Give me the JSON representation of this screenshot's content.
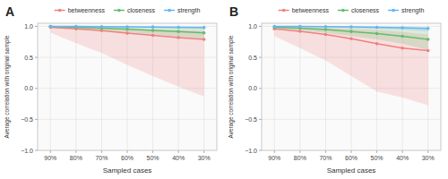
{
  "chart_data": [
    {
      "type": "line",
      "title": "A",
      "xlabel": "Sampled cases",
      "ylabel": "Average correlation with original sample",
      "categories": [
        "90%",
        "80%",
        "70%",
        "60%",
        "50%",
        "40%",
        "30%"
      ],
      "ylim": [
        -1.0,
        1.05
      ],
      "yticks": [
        {
          "value": -1.0,
          "label": "−1.0"
        },
        {
          "value": -0.5,
          "label": "−0.5"
        },
        {
          "value": 0.0,
          "label": "0.0"
        },
        {
          "value": 0.5,
          "label": "0.5"
        },
        {
          "value": 1.0,
          "label": "1.0"
        }
      ],
      "grid": true,
      "legend": "top",
      "series": [
        {
          "name": "betweenness",
          "color": "#F08080",
          "values": [
            0.985,
            0.96,
            0.93,
            0.89,
            0.855,
            0.82,
            0.79
          ],
          "lower": [
            0.9,
            0.73,
            0.57,
            0.38,
            0.2,
            0.03,
            -0.13
          ],
          "upper": [
            1.0,
            0.985,
            0.97,
            0.96,
            0.95,
            0.94,
            0.93
          ]
        },
        {
          "name": "closeness",
          "color": "#66BB6A",
          "values": [
            1.0,
            0.985,
            0.97,
            0.955,
            0.935,
            0.915,
            0.895
          ],
          "lower": [
            0.99,
            0.965,
            0.935,
            0.905,
            0.87,
            0.835,
            0.8
          ],
          "upper": [
            1.0,
            0.999,
            0.998,
            0.995,
            0.992,
            0.988,
            0.983
          ]
        },
        {
          "name": "strength",
          "color": "#64B5F6",
          "values": [
            1.0,
            0.998,
            0.996,
            0.993,
            0.99,
            0.986,
            0.98
          ],
          "lower": [
            0.998,
            0.993,
            0.988,
            0.982,
            0.975,
            0.966,
            0.956
          ],
          "upper": [
            1.0,
            1.0,
            1.0,
            0.999,
            0.998,
            0.997,
            0.996
          ]
        }
      ]
    },
    {
      "type": "line",
      "title": "B",
      "xlabel": "Sampled cases",
      "ylabel": "Average correlation with original sample",
      "categories": [
        "90%",
        "80%",
        "70%",
        "60%",
        "50%",
        "40%",
        "30%"
      ],
      "ylim": [
        -1.0,
        1.05
      ],
      "yticks": [
        {
          "value": -1.0,
          "label": "−1.0"
        },
        {
          "value": -0.5,
          "label": "−0.5"
        },
        {
          "value": 0.0,
          "label": "0.0"
        },
        {
          "value": 0.5,
          "label": "0.5"
        },
        {
          "value": 1.0,
          "label": "1.0"
        }
      ],
      "grid": true,
      "legend": "top",
      "series": [
        {
          "name": "betweenness",
          "color": "#F08080",
          "values": [
            0.96,
            0.92,
            0.87,
            0.8,
            0.72,
            0.65,
            0.61
          ],
          "lower": [
            0.84,
            0.65,
            0.45,
            0.2,
            -0.05,
            -0.15,
            -0.27
          ],
          "upper": [
            1.0,
            0.99,
            0.975,
            0.96,
            0.94,
            0.91,
            0.87
          ]
        },
        {
          "name": "closeness",
          "color": "#66BB6A",
          "values": [
            0.985,
            0.97,
            0.948,
            0.918,
            0.885,
            0.84,
            0.79
          ],
          "lower": [
            0.965,
            0.935,
            0.895,
            0.845,
            0.79,
            0.72,
            0.62
          ],
          "upper": [
            1.0,
            0.999,
            0.995,
            0.99,
            0.985,
            0.975,
            0.96
          ]
        },
        {
          "name": "strength",
          "color": "#64B5F6",
          "values": [
            1.0,
            0.998,
            0.995,
            0.991,
            0.986,
            0.978,
            0.968
          ],
          "lower": [
            0.997,
            0.991,
            0.984,
            0.975,
            0.963,
            0.945,
            0.92
          ],
          "upper": [
            1.0,
            1.0,
            1.0,
            0.999,
            0.998,
            0.997,
            0.995
          ]
        }
      ]
    }
  ]
}
